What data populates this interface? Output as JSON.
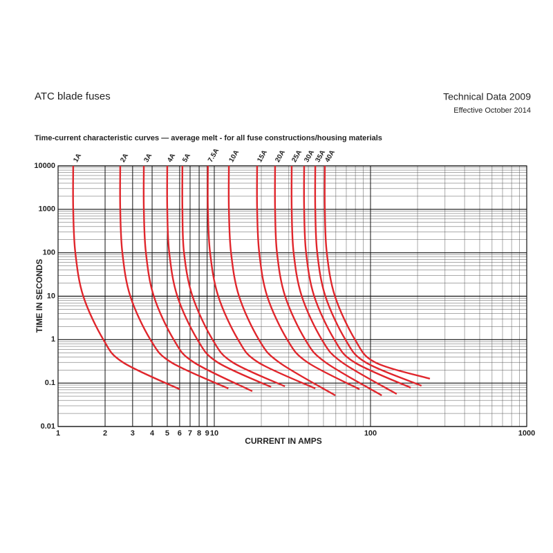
{
  "header": {
    "title": "ATC blade fuses",
    "doc": "Technical Data 2009",
    "date": "Effective October 2014"
  },
  "chart_data": {
    "type": "line",
    "title": "Time-current characteristic curves — average melt - for all fuse constructions/housing materials",
    "xlabel": "CURRENT IN AMPS",
    "ylabel": "TIME IN SECONDS",
    "xlog": true,
    "ylog": true,
    "grid": true,
    "minor_grid": true,
    "xlim": [
      1,
      1000
    ],
    "ylim": [
      0.01,
      10000
    ],
    "xticks": [
      1,
      2,
      3,
      4,
      5,
      6,
      7,
      8,
      9,
      10,
      100,
      1000
    ],
    "yticks": [
      10000,
      1000,
      100,
      10,
      1,
      0.1,
      0.01
    ],
    "series": [
      {
        "name": "1A",
        "color": "#e0262c",
        "x": [
          1.25,
          1.25,
          1.29,
          1.45,
          1.95,
          2.6,
          6.0
        ],
        "values": [
          10000,
          1000,
          100,
          10,
          1,
          0.3,
          0.072
        ]
      },
      {
        "name": "2A",
        "color": "#e0262c",
        "x": [
          2.5,
          2.5,
          2.58,
          2.9,
          3.9,
          5.3,
          12.3
        ],
        "values": [
          10000,
          1000,
          100,
          10,
          1,
          0.3,
          0.075
        ]
      },
      {
        "name": "3A",
        "color": "#e0262c",
        "x": [
          3.54,
          3.54,
          3.65,
          4.1,
          5.5,
          7.4,
          17.5
        ],
        "values": [
          10000,
          1000,
          100,
          10,
          1,
          0.3,
          0.065
        ]
      },
      {
        "name": "4A",
        "color": "#e0262c",
        "x": [
          5,
          5,
          5.15,
          5.8,
          7.8,
          10.5,
          23.1
        ],
        "values": [
          10000,
          1000,
          100,
          10,
          1,
          0.3,
          0.081
        ]
      },
      {
        "name": "5A",
        "color": "#e0262c",
        "x": [
          6.25,
          6.25,
          6.4,
          7.25,
          9.75,
          13.1,
          28.3
        ],
        "values": [
          10000,
          1000,
          100,
          10,
          1,
          0.3,
          0.084
        ]
      },
      {
        "name": "7.5A",
        "color": "#e0262c",
        "x": [
          9.1,
          9.1,
          9.4,
          10.6,
          14.2,
          19.1,
          44.3
        ],
        "values": [
          10000,
          1000,
          100,
          10,
          1,
          0.3,
          0.075
        ]
      },
      {
        "name": "10A",
        "color": "#e0262c",
        "x": [
          12.4,
          12.4,
          12.8,
          14.4,
          19.3,
          26,
          59.5
        ],
        "values": [
          10000,
          1000,
          100,
          10,
          1,
          0.3,
          0.052
        ]
      },
      {
        "name": "15A",
        "color": "#e0262c",
        "x": [
          18.8,
          18.8,
          19.4,
          21.8,
          29.3,
          39.5,
          85
        ],
        "values": [
          10000,
          1000,
          100,
          10,
          1,
          0.3,
          0.072
        ]
      },
      {
        "name": "20A",
        "color": "#e0262c",
        "x": [
          24.5,
          24.5,
          25.2,
          28.4,
          38.2,
          51.5,
          118
        ],
        "values": [
          10000,
          1000,
          100,
          10,
          1,
          0.3,
          0.052
        ]
      },
      {
        "name": "25A",
        "color": "#e0262c",
        "x": [
          31.3,
          31.3,
          32.2,
          36.3,
          48.8,
          65.7,
          147
        ],
        "values": [
          10000,
          1000,
          100,
          10,
          1,
          0.3,
          0.056
        ]
      },
      {
        "name": "30A",
        "color": "#e0262c",
        "x": [
          37.6,
          37.6,
          38.7,
          43.6,
          58.7,
          79,
          181
        ],
        "values": [
          10000,
          1000,
          100,
          10,
          1,
          0.3,
          0.078
        ]
      },
      {
        "name": "35A",
        "color": "#e0262c",
        "x": [
          44.3,
          44.3,
          45.6,
          51.4,
          69.1,
          93,
          212
        ],
        "values": [
          10000,
          1000,
          100,
          10,
          1,
          0.3,
          0.087
        ]
      },
      {
        "name": "40A",
        "color": "#e0262c",
        "x": [
          51,
          51,
          52.5,
          59.2,
          79.6,
          107,
          240
        ],
        "values": [
          10000,
          1000,
          100,
          10,
          1,
          0.3,
          0.126
        ]
      }
    ]
  }
}
